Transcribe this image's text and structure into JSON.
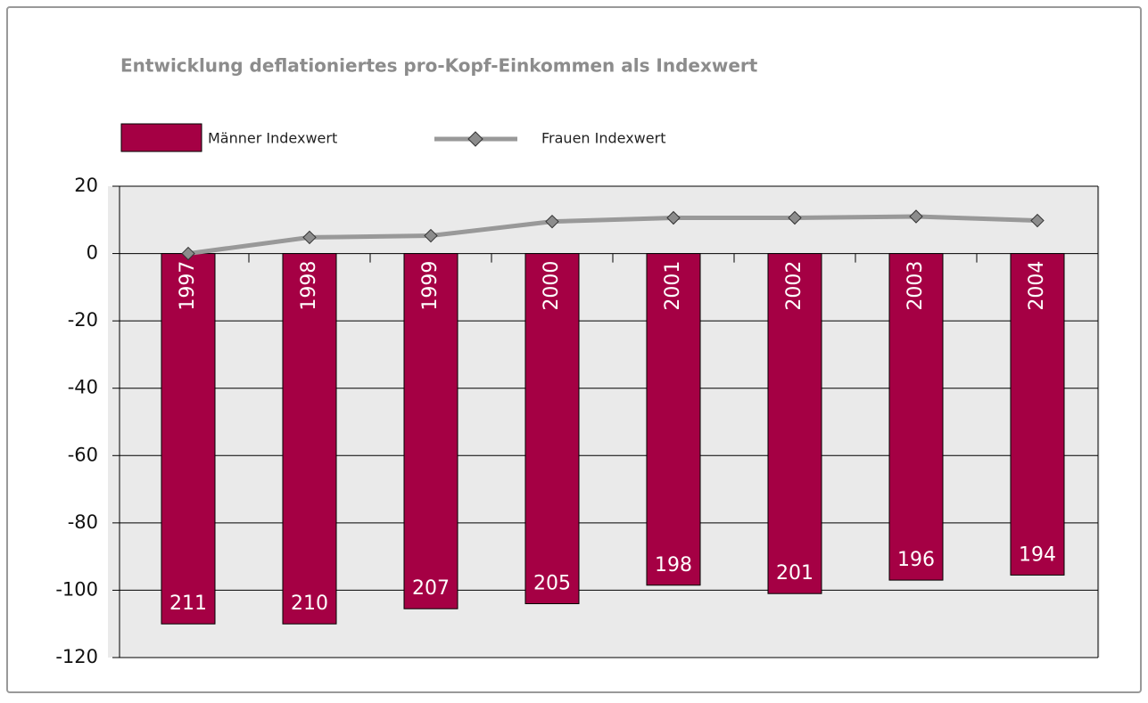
{
  "chart_data": {
    "type": "bar-line",
    "title": "Entwicklung deflationiertes pro-Kopf-Einkommen als Indexwert",
    "categories": [
      "1997",
      "1998",
      "1999",
      "2000",
      "2001",
      "2002",
      "2003",
      "2004"
    ],
    "series": [
      {
        "name": "Männer Indexwert",
        "type": "bar",
        "color": "#a50044",
        "values": [
          -110,
          -110,
          -105.5,
          -104,
          -98.5,
          -101,
          -97,
          -95.5
        ],
        "annotations": [
          "211",
          "210",
          "207",
          "205",
          "198",
          "201",
          "196",
          "194"
        ]
      },
      {
        "name": "Frauen Indexwert",
        "type": "line",
        "color": "#999999",
        "marker_color": "#8c8c8c",
        "values": [
          0,
          4.8,
          5.3,
          9.5,
          10.6,
          10.6,
          11,
          9.8
        ]
      }
    ],
    "ylim": [
      -120,
      20
    ],
    "yticks": [
      -120,
      -100,
      -80,
      -60,
      -40,
      -20,
      0,
      20
    ],
    "grid": true
  }
}
